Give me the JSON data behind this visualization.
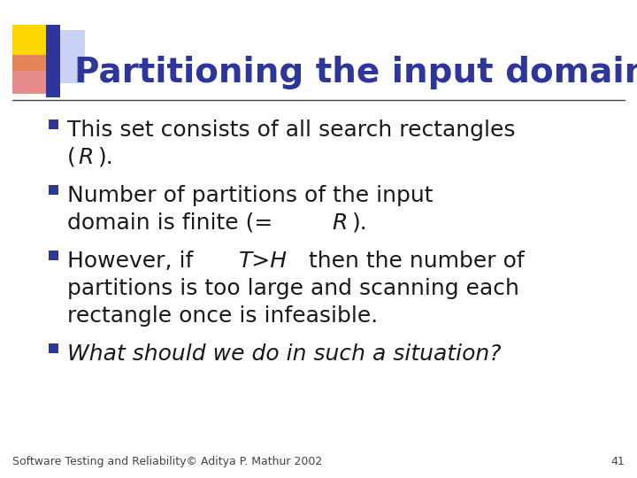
{
  "title": "Partitioning the input domain",
  "title_color": "#2E3699",
  "background_color": "#FFFFFF",
  "bullet_color": "#2E3699",
  "text_color": "#1a1a1a",
  "footer_text": "Software Testing and Reliability© Aditya P. Mathur 2002",
  "footer_page": "41",
  "decor_colors": {
    "yellow": "#FFD700",
    "red": "#E8606080",
    "blue_dark": "#2E3699",
    "blue_light": "#6688CC"
  },
  "line_color": "#555555",
  "title_font_size": 28,
  "bullet_font_size": 18,
  "footer_font_size": 9
}
